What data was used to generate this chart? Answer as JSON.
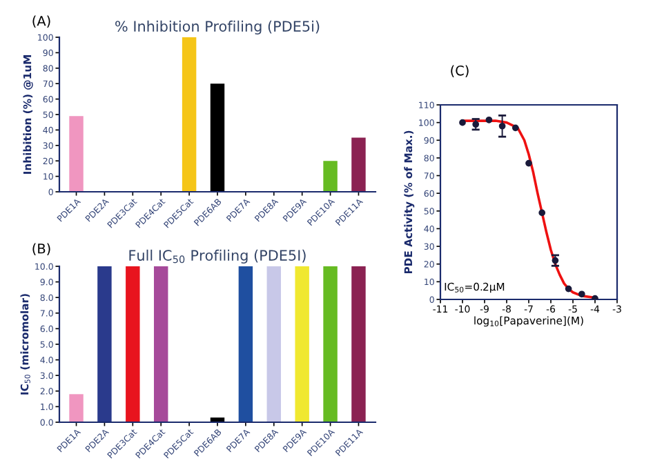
{
  "chart_data": [
    {
      "type": "bar",
      "title": "% Inhibition Profiling (PDE5i)",
      "ylabel": "Inhibition (%) @1uM",
      "annotations": [
        "(A)"
      ],
      "categories": [
        "PDE1A",
        "PDE2A",
        "PDE3Cat",
        "PDE4Cat",
        "PDE5Cat",
        "PDE6AB",
        "PDE7A",
        "PDE8A",
        "PDE9A",
        "PDE10A",
        "PDE11A"
      ],
      "values": [
        49,
        0,
        0,
        0,
        100,
        70,
        0,
        0,
        0,
        20,
        35
      ],
      "colors": [
        "#f096c0",
        "#2a3a8c",
        "#e8141e",
        "#a64a9a",
        "#f5c518",
        "#000000",
        "#1f4fa0",
        "#c8c8e8",
        "#f0e830",
        "#66bb22",
        "#8b2252"
      ],
      "ylim": [
        0,
        100
      ],
      "yticks": [
        0,
        10,
        20,
        30,
        40,
        50,
        60,
        70,
        80,
        90,
        100
      ],
      "grid": false,
      "legend": false
    },
    {
      "type": "bar",
      "title": "Full IC$_{50}$ Profiling (PDE5I)",
      "ylabel": "IC$_{50}$ (micromolar)",
      "annotations": [
        "(B)"
      ],
      "categories": [
        "PDE1A",
        "PDE2A",
        "PDE3Cat",
        "PDE4Cat",
        "PDE5Cat",
        "PDE6AB",
        "PDE7A",
        "PDE8A",
        "PDE9A",
        "PDE10A",
        "PDE11A"
      ],
      "values": [
        1.8,
        10,
        10,
        10,
        0,
        0.3,
        10,
        10,
        10,
        10,
        10
      ],
      "colors": [
        "#f096c0",
        "#2a3a8c",
        "#e8141e",
        "#a64a9a",
        "#000000",
        "#000000",
        "#1f4fa0",
        "#c8c8e8",
        "#f0e830",
        "#66bb22",
        "#8b2252"
      ],
      "ylim": [
        0,
        10
      ],
      "yticks": [
        {
          "value": 0,
          "label": "0.0"
        },
        {
          "value": 1,
          "label": "1.0"
        },
        {
          "value": 2,
          "label": "2.0"
        },
        {
          "value": 3,
          "label": "3.0"
        },
        {
          "value": 4,
          "label": "4.0"
        },
        {
          "value": 5,
          "label": "5.0"
        },
        {
          "value": 6,
          "label": "6.0"
        },
        {
          "value": 7,
          "label": "7.0"
        },
        {
          "value": 8,
          "label": "8.0"
        },
        {
          "value": 9,
          "label": "9.0"
        },
        {
          "value": 10,
          "label": "10.0"
        }
      ],
      "grid": false,
      "legend": false
    },
    {
      "type": "scatter",
      "xlabel": "log$_{10}$[Papaverine](M)",
      "ylabel": "PDE Activity (% of Max.)",
      "annotations": [
        "(C)",
        "IC$_{50}$=0.2μM"
      ],
      "series": [
        {
          "type": "scatter",
          "color": "#1a1a3a",
          "marker": "circle",
          "x": [
            -10,
            -9.4,
            -8.8,
            -8.2,
            -7.6,
            -7.0,
            -6.4,
            -5.8,
            -5.2,
            -4.6,
            -4.0
          ],
          "values": [
            100,
            99,
            101.5,
            98,
            97,
            77,
            49,
            22,
            6,
            3,
            0.5
          ],
          "errors": [
            null,
            3,
            null,
            6,
            null,
            null,
            null,
            3,
            null,
            null,
            null
          ]
        },
        {
          "type": "line",
          "color": "#ee1111",
          "line_style": "solid",
          "x": [
            -10,
            -9,
            -8.5,
            -8,
            -7.5,
            -7.2,
            -7.0,
            -6.8,
            -6.6,
            -6.4,
            -6.2,
            -6.0,
            -5.8,
            -5.6,
            -5.4,
            -5.2,
            -5.0,
            -4.6,
            -4.0
          ],
          "values": [
            101,
            101,
            101,
            100,
            97,
            90,
            82,
            72,
            60,
            49,
            38,
            28,
            20,
            14,
            9,
            6,
            4,
            2,
            1
          ]
        }
      ],
      "xlim": [
        -11,
        -3
      ],
      "xticks": [
        -11,
        -10,
        -9,
        -8,
        -7,
        -6,
        -5,
        -4,
        -3
      ],
      "ylim": [
        0,
        110
      ],
      "yticks": [
        0,
        10,
        20,
        30,
        40,
        50,
        60,
        70,
        80,
        90,
        100,
        110
      ],
      "grid": false,
      "legend": false
    }
  ]
}
